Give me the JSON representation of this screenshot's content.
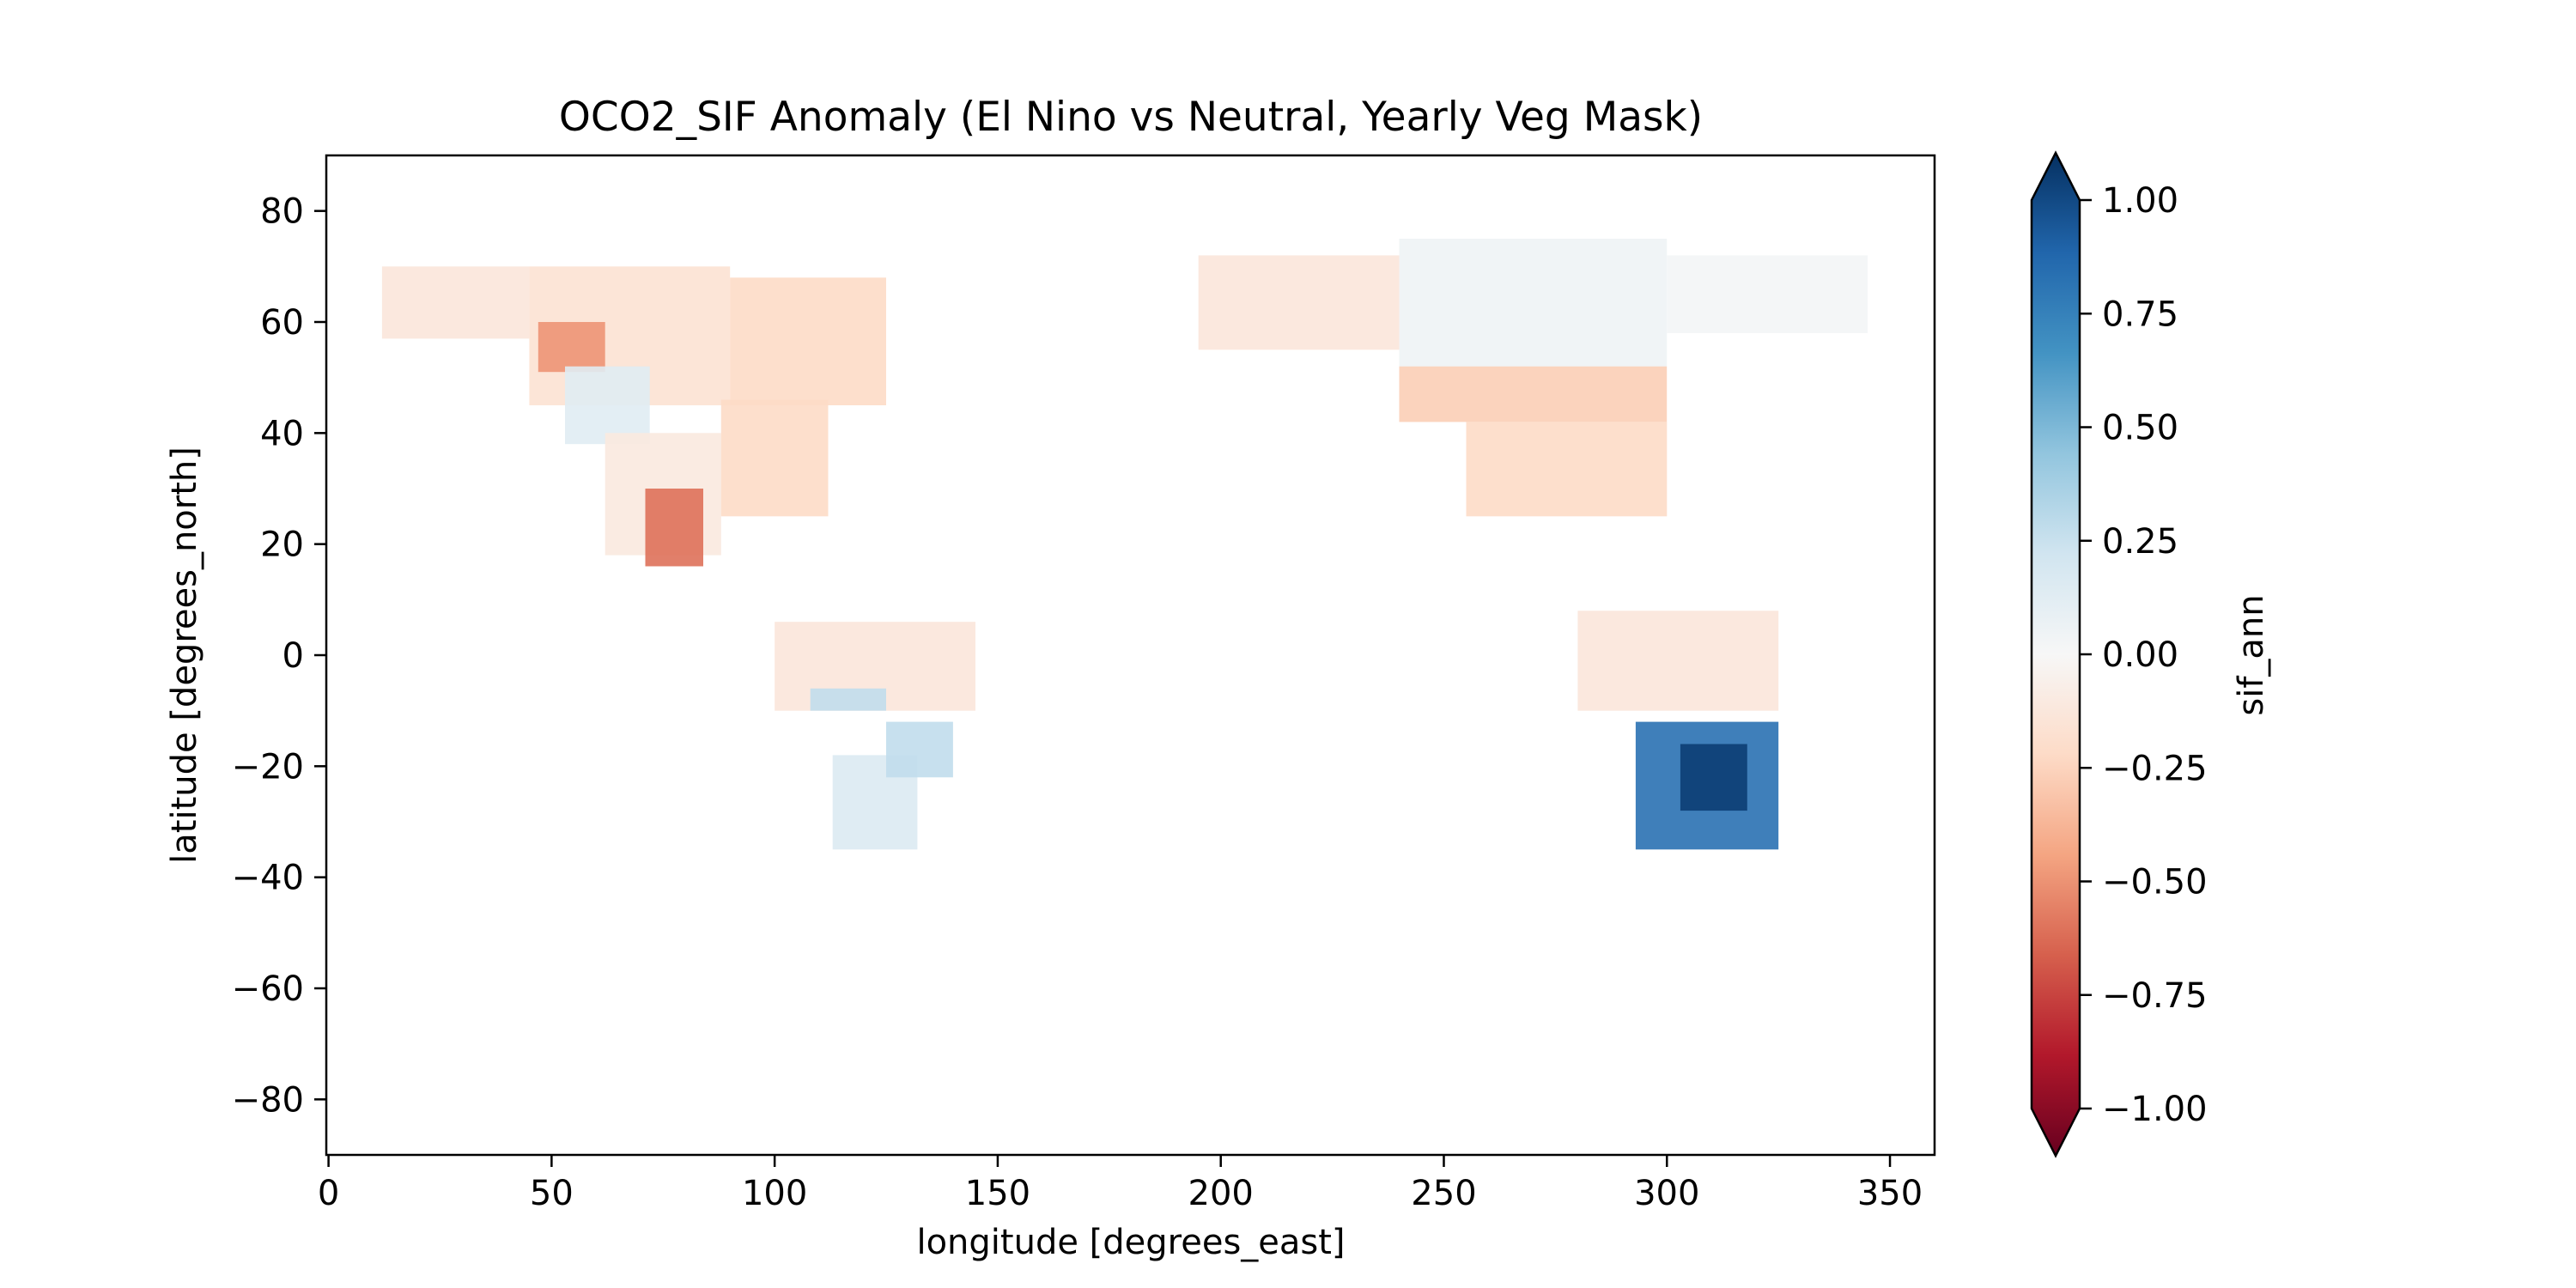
{
  "chart_data": {
    "type": "heatmap",
    "title": "OCO2_SIF Anomaly (El Nino vs Neutral, Yearly Veg Mask)",
    "xlabel": "longitude [degrees_east]",
    "ylabel": "latitude [degrees_north]",
    "xlim": [
      -0.5,
      360
    ],
    "ylim": [
      -90,
      90
    ],
    "x_ticks": [
      0,
      50,
      100,
      150,
      200,
      250,
      300,
      350
    ],
    "x_tick_labels": [
      "0",
      "50",
      "100",
      "150",
      "200",
      "250",
      "300",
      "350"
    ],
    "y_ticks": [
      80,
      60,
      40,
      20,
      0,
      -20,
      -40,
      -60,
      -80
    ],
    "y_tick_labels": [
      "80",
      "60",
      "40",
      "20",
      "0",
      "−20",
      "−40",
      "−60",
      "−80"
    ],
    "grid": false,
    "colorbar": {
      "label": "sif_ann",
      "colormap": "RdBu",
      "range": [
        -1.0,
        1.0
      ],
      "extend": "both",
      "ticks": [
        1.0,
        0.75,
        0.5,
        0.25,
        0.0,
        -0.25,
        -0.5,
        -0.75,
        -1.0
      ],
      "tick_labels": [
        "1.00",
        "0.75",
        "0.50",
        "0.25",
        "0.00",
        "−0.25",
        "−0.50",
        "−0.75",
        "−1.00"
      ],
      "stops": [
        "#67001f",
        "#b2182b",
        "#d6604d",
        "#f4a582",
        "#fddbc7",
        "#f7f7f7",
        "#d1e5f0",
        "#92c5de",
        "#4393c3",
        "#2166ac",
        "#053061"
      ]
    },
    "regions": [
      {
        "lon": [
          12,
          45
        ],
        "lat": [
          57,
          70
        ],
        "value": -0.12
      },
      {
        "lon": [
          45,
          90
        ],
        "lat": [
          45,
          70
        ],
        "value": -0.15
      },
      {
        "lon": [
          90,
          125
        ],
        "lat": [
          45,
          68
        ],
        "value": -0.2
      },
      {
        "lon": [
          47,
          62
        ],
        "lat": [
          51,
          60
        ],
        "value": -0.45
      },
      {
        "lon": [
          53,
          72
        ],
        "lat": [
          38,
          52
        ],
        "value": 0.12
      },
      {
        "lon": [
          62,
          88
        ],
        "lat": [
          18,
          40
        ],
        "value": -0.1
      },
      {
        "lon": [
          88,
          112
        ],
        "lat": [
          25,
          46
        ],
        "value": -0.2
      },
      {
        "lon": [
          71,
          84
        ],
        "lat": [
          16,
          30
        ],
        "value": -0.55
      },
      {
        "lon": [
          100,
          145
        ],
        "lat": [
          -10,
          6
        ],
        "value": -0.12
      },
      {
        "lon": [
          108,
          125
        ],
        "lat": [
          -10,
          -6
        ],
        "value": 0.25
      },
      {
        "lon": [
          113,
          132
        ],
        "lat": [
          -35,
          -18
        ],
        "value": 0.15
      },
      {
        "lon": [
          125,
          140
        ],
        "lat": [
          -22,
          -12
        ],
        "value": 0.25
      },
      {
        "lon": [
          195,
          240
        ],
        "lat": [
          55,
          72
        ],
        "value": -0.12
      },
      {
        "lon": [
          240,
          300
        ],
        "lat": [
          52,
          75
        ],
        "value": 0.05
      },
      {
        "lon": [
          240,
          300
        ],
        "lat": [
          42,
          52
        ],
        "value": -0.25
      },
      {
        "lon": [
          300,
          345
        ],
        "lat": [
          58,
          72
        ],
        "value": 0.02
      },
      {
        "lon": [
          255,
          300
        ],
        "lat": [
          25,
          42
        ],
        "value": -0.2
      },
      {
        "lon": [
          280,
          325
        ],
        "lat": [
          -10,
          8
        ],
        "value": -0.12
      },
      {
        "lon": [
          293,
          325
        ],
        "lat": [
          -35,
          -12
        ],
        "value": 0.75
      },
      {
        "lon": [
          303,
          318
        ],
        "lat": [
          -28,
          -16
        ],
        "value": 0.95
      }
    ]
  }
}
